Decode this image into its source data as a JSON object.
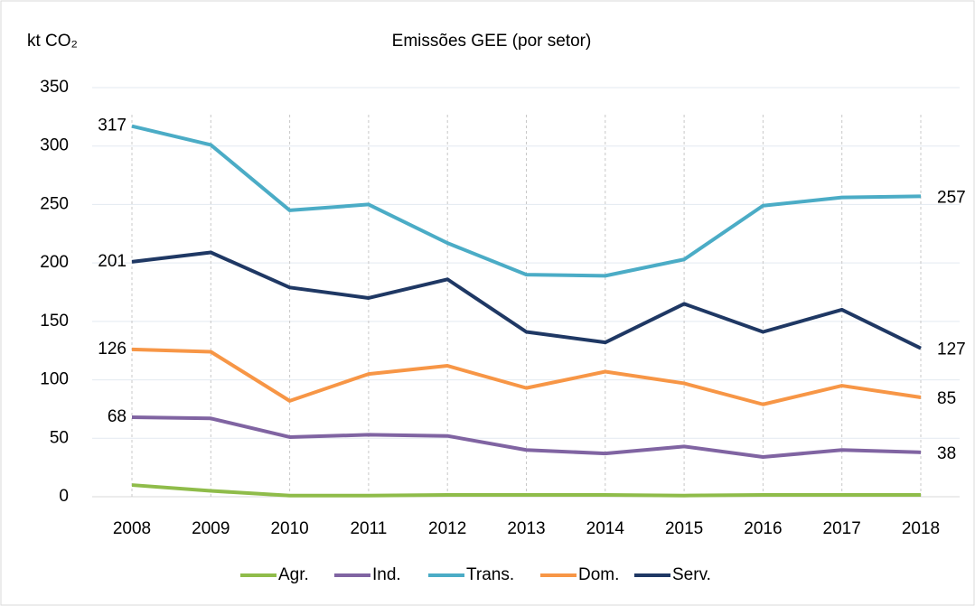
{
  "chart_data": {
    "type": "line",
    "title": "Emissões GEE (por setor)",
    "y_label": "kt CO₂",
    "categories": [
      "2008",
      "2009",
      "2010",
      "2011",
      "2012",
      "2013",
      "2014",
      "2015",
      "2016",
      "2017",
      "2018"
    ],
    "ylim": [
      0,
      350
    ],
    "yticks": [
      0,
      50,
      100,
      150,
      200,
      250,
      300,
      350
    ],
    "grid": true,
    "legend": "bottom",
    "series": [
      {
        "name": "Agr.",
        "color": "#8fbc4a",
        "values": [
          10,
          5,
          1,
          1,
          1.5,
          1.5,
          1.5,
          1,
          1.5,
          1.5,
          1.5
        ]
      },
      {
        "name": "Ind.",
        "color": "#8064a2",
        "values": [
          68,
          67,
          51,
          53,
          52,
          40,
          37,
          43,
          34,
          40,
          38
        ],
        "data_labels": "ends"
      },
      {
        "name": "Trans.",
        "color": "#4bacc6",
        "values": [
          317,
          301,
          245,
          250,
          217,
          190,
          189,
          203,
          249,
          256,
          257
        ],
        "data_labels": "ends"
      },
      {
        "name": "Dom.",
        "color": "#f79646",
        "values": [
          126,
          124,
          82,
          105,
          112,
          93,
          107,
          97,
          79,
          95,
          85
        ],
        "data_labels": "ends"
      },
      {
        "name": "Serv.",
        "color": "#1f3864",
        "values": [
          201,
          209,
          179,
          170,
          186,
          141,
          132,
          165,
          141,
          160,
          127
        ],
        "data_labels": "ends"
      }
    ]
  }
}
